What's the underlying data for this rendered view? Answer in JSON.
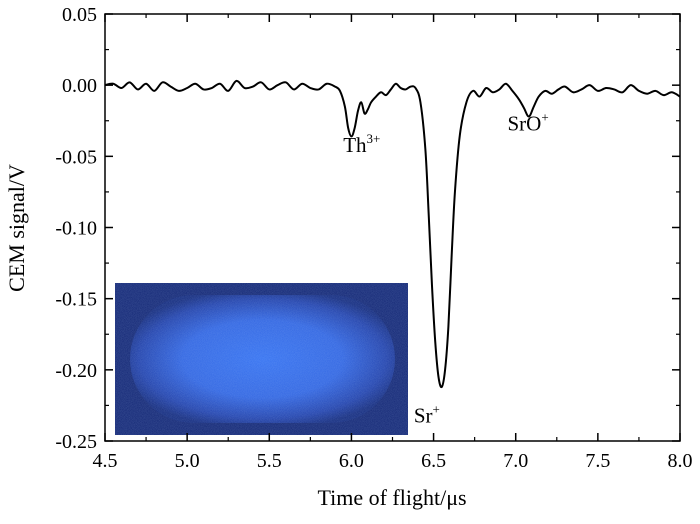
{
  "chart_data": {
    "type": "line",
    "title": "",
    "xlabel": "Time of flight/μs",
    "ylabel": "CEM signal/V",
    "xlim": [
      4.5,
      8.0
    ],
    "ylim": [
      -0.25,
      0.05
    ],
    "x_ticks": [
      "4.5",
      "5.0",
      "5.5",
      "6.0",
      "6.5",
      "7.0",
      "7.5",
      "8.0"
    ],
    "y_ticks": [
      "0.05",
      "0.00",
      "-0.05",
      "-0.10",
      "-0.15",
      "-0.20",
      "-0.25"
    ],
    "grid": false,
    "legend": "none",
    "line_color": "#000000",
    "series": [
      {
        "x": [
          4.5,
          4.55,
          4.6,
          4.65,
          4.7,
          4.75,
          4.8,
          4.85,
          4.9,
          4.95,
          5.0,
          5.05,
          5.1,
          5.15,
          5.2,
          5.25,
          5.3,
          5.35,
          5.4,
          5.45,
          5.5,
          5.55,
          5.6,
          5.65,
          5.7,
          5.75,
          5.8,
          5.85,
          5.9,
          5.93,
          5.96,
          5.98,
          6.0,
          6.02,
          6.04,
          6.06,
          6.08,
          6.1,
          6.12,
          6.15,
          6.18,
          6.21,
          6.24,
          6.27,
          6.3,
          6.33,
          6.36,
          6.39,
          6.42,
          6.45,
          6.47,
          6.49,
          6.51,
          6.53,
          6.55,
          6.57,
          6.59,
          6.61,
          6.63,
          6.66,
          6.7,
          6.74,
          6.78,
          6.82,
          6.86,
          6.9,
          6.94,
          6.98,
          7.02,
          7.05,
          7.08,
          7.11,
          7.14,
          7.18,
          7.22,
          7.26,
          7.3,
          7.35,
          7.4,
          7.45,
          7.5,
          7.55,
          7.6,
          7.65,
          7.7,
          7.75,
          7.8,
          7.85,
          7.9,
          7.95,
          8.0
        ],
        "y": [
          0.0,
          0.001,
          -0.002,
          0.002,
          -0.003,
          0.001,
          -0.004,
          0.002,
          -0.001,
          -0.004,
          -0.002,
          0.001,
          -0.003,
          -0.002,
          0.001,
          -0.004,
          0.003,
          -0.002,
          -0.001,
          0.002,
          -0.003,
          0.0,
          0.002,
          -0.003,
          0.001,
          -0.002,
          -0.003,
          0.001,
          -0.001,
          -0.004,
          -0.015,
          -0.03,
          -0.036,
          -0.03,
          -0.018,
          -0.012,
          -0.02,
          -0.017,
          -0.012,
          -0.008,
          -0.005,
          -0.007,
          -0.003,
          0.001,
          -0.002,
          -0.003,
          -0.001,
          -0.002,
          -0.012,
          -0.045,
          -0.09,
          -0.14,
          -0.18,
          -0.205,
          -0.212,
          -0.2,
          -0.17,
          -0.12,
          -0.075,
          -0.035,
          -0.012,
          -0.004,
          -0.008,
          -0.002,
          -0.005,
          -0.003,
          0.001,
          -0.004,
          -0.01,
          -0.016,
          -0.022,
          -0.015,
          -0.008,
          -0.004,
          -0.006,
          -0.003,
          -0.001,
          -0.005,
          -0.003,
          0.0,
          -0.004,
          -0.002,
          -0.003,
          -0.005,
          0.0,
          -0.004,
          -0.006,
          -0.004,
          -0.007,
          -0.005,
          -0.008
        ]
      }
    ],
    "annotations": [
      {
        "text": "Th",
        "sup": "3+",
        "x": 5.95,
        "y": -0.047
      },
      {
        "text": "Sr",
        "sup": "+",
        "x": 6.38,
        "y": -0.237
      },
      {
        "text": "SrO",
        "sup": "+",
        "x": 6.95,
        "y": -0.032
      }
    ]
  },
  "inset": {
    "description_icon": "ion-crystal-image",
    "background_color": "#0a1d6e",
    "glow_color": "#3a78ff"
  }
}
